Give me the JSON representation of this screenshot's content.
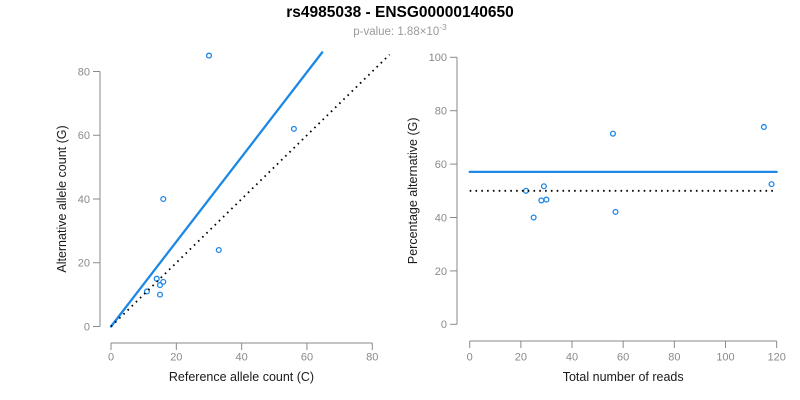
{
  "header": {
    "title": "rs4985038 - ENSG00000140650",
    "p_value_prefix": "p-value: 1.88×10",
    "p_value_exponent": "-3"
  },
  "colors": {
    "accent_blue": "#1E88E5",
    "axis_gray": "#8a8a8a",
    "subtitle_gray": "#9a9a9a",
    "line_black": "#000000"
  },
  "chart_data": [
    {
      "type": "scatter",
      "name": "allele-counts",
      "xlabel": "Reference allele count (C)",
      "ylabel": "Alternative allele count (G)",
      "xlim": [
        0,
        80
      ],
      "ylim": [
        0,
        80
      ],
      "xticks": [
        0,
        20,
        40,
        60,
        80
      ],
      "yticks": [
        0,
        20,
        40,
        60,
        80
      ],
      "grid": false,
      "points": [
        [
          11,
          11
        ],
        [
          14,
          15
        ],
        [
          15,
          10
        ],
        [
          15,
          13
        ],
        [
          16,
          14
        ],
        [
          16,
          40
        ],
        [
          30,
          85
        ],
        [
          33,
          24
        ],
        [
          56,
          62
        ]
      ],
      "lines": [
        {
          "name": "fitted-ratio-line",
          "style": "solid",
          "color_key": "accent_blue",
          "slope": 1.33,
          "intercept": 0
        },
        {
          "name": "identity-line",
          "style": "dotted",
          "color": "#000000",
          "slope": 1,
          "intercept": 0
        }
      ]
    },
    {
      "type": "scatter",
      "name": "percentage-vs-coverage",
      "xlabel": "Total number of reads",
      "ylabel": "Percentage alternative (G)",
      "xlim": [
        0,
        120
      ],
      "ylim": [
        0,
        100
      ],
      "xticks": [
        0,
        20,
        40,
        60,
        80,
        100,
        120
      ],
      "yticks": [
        0,
        20,
        40,
        60,
        80,
        100
      ],
      "grid": false,
      "points": [
        [
          22,
          50
        ],
        [
          25,
          40
        ],
        [
          28,
          46.4
        ],
        [
          29,
          51.7
        ],
        [
          30,
          46.7
        ],
        [
          56,
          71.4
        ],
        [
          57,
          42.1
        ],
        [
          115,
          73.9
        ],
        [
          118,
          52.5
        ]
      ],
      "lines": [
        {
          "name": "mean-percentage-line",
          "style": "solid",
          "color_key": "accent_blue",
          "y": 57.1
        },
        {
          "name": "fifty-percent-line",
          "style": "dotted",
          "color": "#000000",
          "y": 50
        }
      ]
    }
  ]
}
